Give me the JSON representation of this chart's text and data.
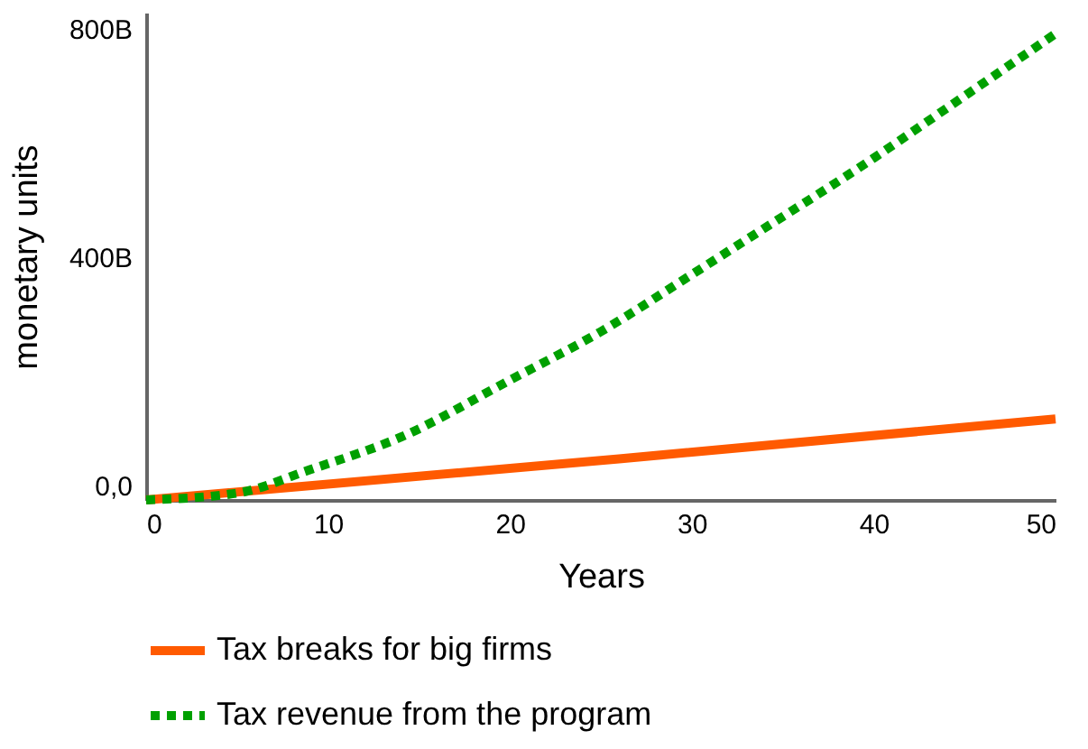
{
  "chart_data": {
    "type": "line",
    "xlabel": "Years",
    "ylabel": "monetary units",
    "xlim": [
      0,
      50
    ],
    "xticks": [
      0,
      10,
      20,
      30,
      40,
      50
    ],
    "ylim": [
      -25,
      829
    ],
    "yticks": [
      {
        "value": 0,
        "label": "0,0"
      },
      {
        "value": 400,
        "label": "400B"
      },
      {
        "value": 800,
        "label": "800B"
      }
    ],
    "grid": false,
    "legend": "bottom",
    "marker": "none",
    "series": [
      {
        "name": "Tax breaks for big firms",
        "color": "#ff5a00",
        "line_style": "solid",
        "x": [
          0,
          26,
          50
        ],
        "values": [
          -25,
          47,
          117
        ]
      },
      {
        "name": "Tax revenue from the program",
        "color": "#00a000",
        "line_style": "dotted",
        "x": [
          0,
          5,
          9,
          14,
          20,
          25,
          30,
          33,
          40,
          45,
          50
        ],
        "values": [
          -25,
          -13,
          28,
          85,
          185,
          270,
          370,
          431,
          574,
          683,
          792
        ]
      }
    ]
  }
}
